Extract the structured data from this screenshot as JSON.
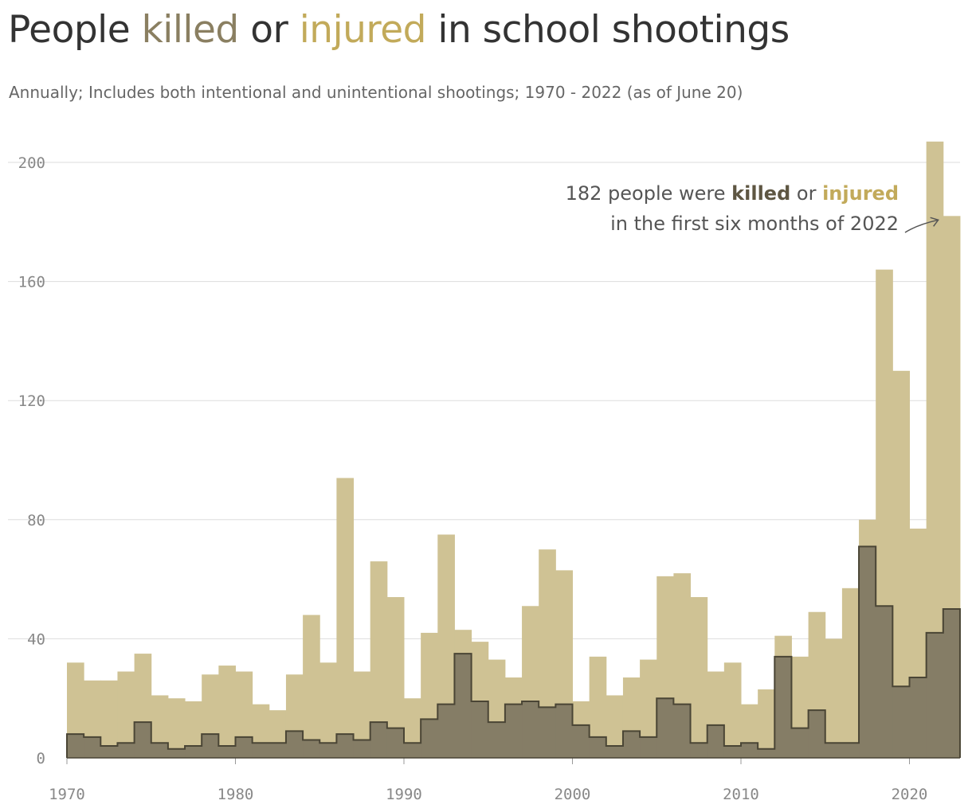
{
  "title": {
    "pre": "People ",
    "killed": "killed",
    "mid": " or ",
    "injured": "injured",
    "post": " in school shootings"
  },
  "subtitle": "Annually; Includes both intentional and unintentional shootings; 1970 - 2022 (as of June 20)",
  "annotation": {
    "line1_pre": "182 people were ",
    "killed": "killed",
    "line1_mid": " or ",
    "injured": "injured",
    "line2": "in the first six months of 2022"
  },
  "colors": {
    "injured_fill": "#cfc294",
    "killed_fill": "#857d66",
    "killed_line": "#4a4535",
    "killed_word": "#8a7f61",
    "injured_word": "#c2aa5a",
    "grid": "#dddddd"
  },
  "chart_data": {
    "type": "area",
    "step": true,
    "x": [
      1970,
      1971,
      1972,
      1973,
      1974,
      1975,
      1976,
      1977,
      1978,
      1979,
      1980,
      1981,
      1982,
      1983,
      1984,
      1985,
      1986,
      1987,
      1988,
      1989,
      1990,
      1991,
      1992,
      1993,
      1994,
      1995,
      1996,
      1997,
      1998,
      1999,
      2000,
      2001,
      2002,
      2003,
      2004,
      2005,
      2006,
      2007,
      2008,
      2009,
      2010,
      2011,
      2012,
      2013,
      2014,
      2015,
      2016,
      2017,
      2018,
      2019,
      2020,
      2021,
      2022
    ],
    "series": [
      {
        "name": "killed or injured",
        "values": [
          32,
          26,
          26,
          29,
          35,
          21,
          20,
          19,
          28,
          31,
          29,
          18,
          16,
          28,
          48,
          32,
          94,
          29,
          66,
          54,
          20,
          42,
          75,
          43,
          39,
          33,
          27,
          51,
          70,
          63,
          19,
          34,
          21,
          27,
          33,
          61,
          62,
          54,
          29,
          32,
          18,
          23,
          41,
          34,
          49,
          40,
          57,
          80,
          164,
          130,
          77,
          207,
          182
        ]
      },
      {
        "name": "killed",
        "values": [
          8,
          7,
          4,
          5,
          12,
          5,
          3,
          4,
          8,
          4,
          7,
          5,
          5,
          9,
          6,
          5,
          8,
          6,
          12,
          10,
          5,
          13,
          18,
          35,
          19,
          12,
          18,
          19,
          17,
          18,
          11,
          7,
          4,
          9,
          7,
          20,
          18,
          5,
          11,
          4,
          5,
          3,
          34,
          10,
          16,
          5,
          5,
          71,
          51,
          24,
          27,
          42,
          50
        ]
      }
    ],
    "xticks": [
      "1970",
      "1980",
      "1990",
      "2000",
      "2010",
      "2020"
    ],
    "yticks": [
      "0",
      "40",
      "80",
      "120",
      "160",
      "200"
    ],
    "xlim": [
      1970,
      2022
    ],
    "ylim": [
      0,
      200
    ],
    "grid": true
  }
}
